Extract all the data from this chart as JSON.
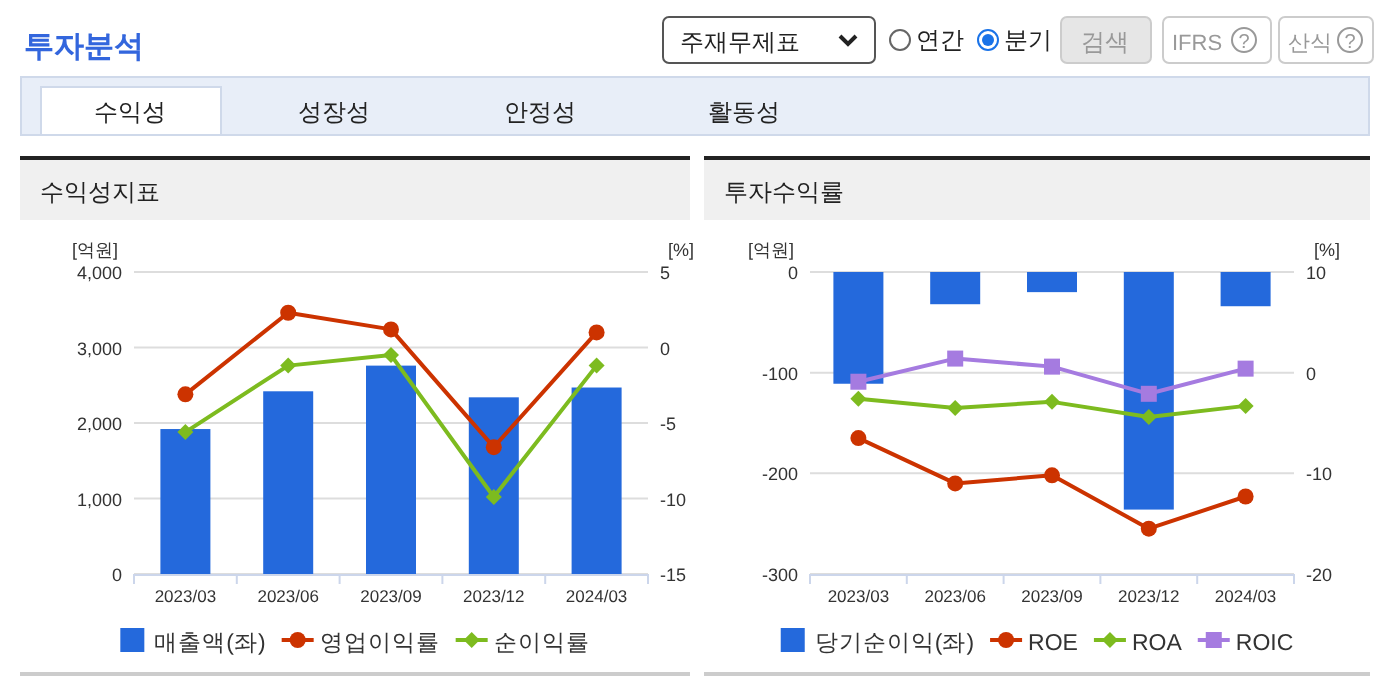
{
  "chart_data": [
    {
      "type": "other",
      "title": "투자분석",
      "annotations": [
        "주재무제표",
        "연간",
        "분기",
        "검색",
        "IFRS",
        "?",
        "산식",
        "?",
        "수익성",
        "성장성",
        "안정성",
        "활동성"
      ]
    },
    {
      "type": "bar",
      "title": "수익성지표",
      "categories": [
        "2023/03",
        "2023/06",
        "2023/09",
        "2023/12",
        "2024/03"
      ],
      "ylabel": "[억원]",
      "y2label": "[%]",
      "ylim": [
        0,
        4000
      ],
      "yticks": [
        0,
        {
          "value": 1000,
          "label": "1,000"
        },
        {
          "value": 2000,
          "label": "2,000"
        },
        {
          "value": 3000,
          "label": "3,000"
        },
        {
          "value": 4000,
          "label": "4,000"
        }
      ],
      "y2lim": [
        -15,
        5
      ],
      "y2ticks": [
        -15,
        -10,
        -5,
        0,
        5
      ],
      "grid": "y",
      "legend": "bottom",
      "series": [
        {
          "name": "매출액(좌)",
          "type": "bar",
          "color": "#2469dc",
          "values": [
            1920,
            2420,
            2760,
            2340,
            2470
          ]
        },
        {
          "name": "영업이익률",
          "type": "line",
          "axis": "y2",
          "marker": "circle",
          "color": "#cc3300",
          "values": [
            -3.1,
            2.3,
            1.2,
            -6.6,
            1.0
          ]
        },
        {
          "name": "순이익률",
          "type": "line",
          "axis": "y2",
          "marker": "diamond",
          "color": "#7dbb1f",
          "values": [
            -5.6,
            -1.2,
            -0.5,
            -9.9,
            -1.2
          ]
        }
      ]
    },
    {
      "type": "bar",
      "title": "투자수익률",
      "categories": [
        "2023/03",
        "2023/06",
        "2023/09",
        "2023/12",
        "2024/03"
      ],
      "ylabel": "[억원]",
      "y2label": "[%]",
      "ylim": [
        -300,
        0
      ],
      "yticks": [
        -300,
        -200,
        -100,
        0
      ],
      "y2lim": [
        -20,
        10
      ],
      "y2ticks": [
        -20,
        -10,
        0,
        10
      ],
      "grid": "y",
      "legend": "bottom",
      "series": [
        {
          "name": "당기순이익(좌)",
          "type": "bar",
          "color": "#2469dc",
          "values": [
            -111,
            -32,
            -20,
            -236,
            -34
          ]
        },
        {
          "name": "ROE",
          "type": "line",
          "axis": "y2",
          "marker": "circle",
          "color": "#cc3300",
          "values": [
            -6.5,
            -11.0,
            -10.2,
            -15.5,
            -12.3
          ]
        },
        {
          "name": "ROA",
          "type": "line",
          "axis": "y2",
          "marker": "diamond",
          "color": "#7dbb1f",
          "values": [
            -2.6,
            -3.5,
            -2.9,
            -4.4,
            -3.3
          ]
        },
        {
          "name": "ROIC",
          "type": "line",
          "axis": "y2",
          "marker": "square",
          "color": "#a57be0",
          "values": [
            -0.9,
            1.4,
            0.6,
            -2.1,
            0.4
          ]
        }
      ]
    }
  ]
}
